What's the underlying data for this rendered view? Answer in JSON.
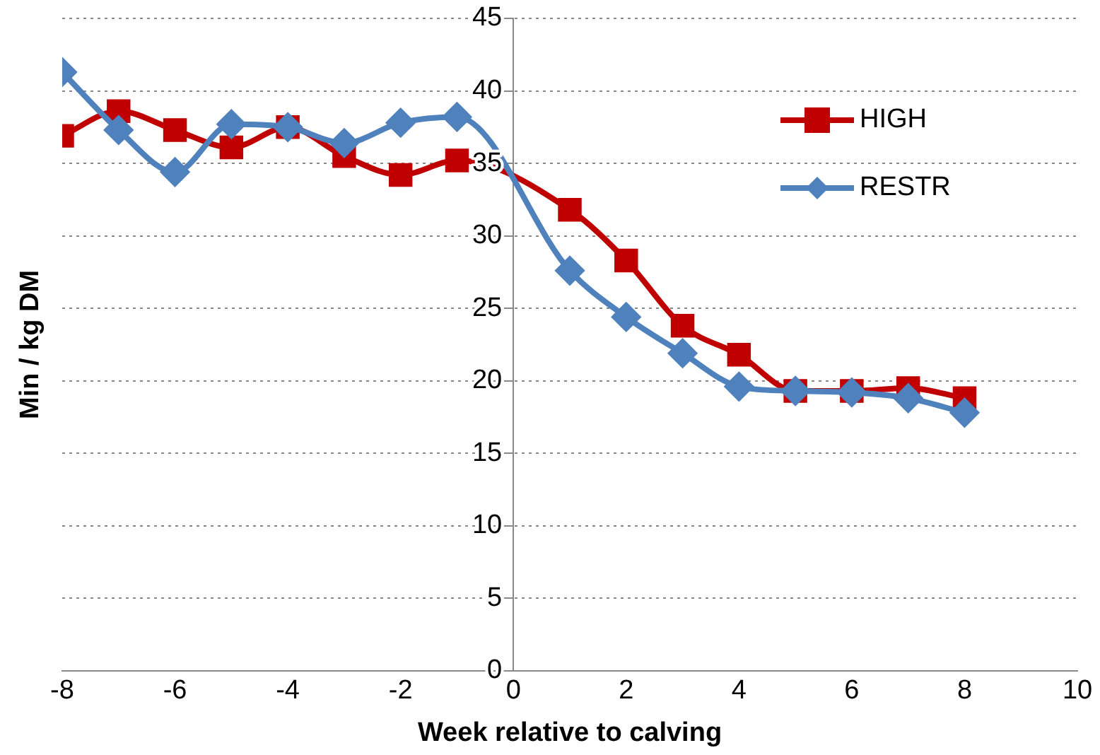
{
  "chart_data": {
    "type": "line",
    "xlabel": "Week relative to calving",
    "ylabel": "Min / kg DM",
    "xlim": [
      -8,
      10
    ],
    "xticks": [
      -8,
      -6,
      -4,
      -2,
      0,
      2,
      4,
      6,
      8,
      10
    ],
    "ylim": [
      0,
      45
    ],
    "yticks": [
      0,
      5,
      10,
      15,
      20,
      25,
      30,
      35,
      40,
      45
    ],
    "grid": "y",
    "legend": "right",
    "series": [
      {
        "name": "HIGH",
        "color": "#c00000",
        "marker": "square",
        "x": [
          -8,
          -7,
          -6,
          -5,
          -4,
          -3,
          -2,
          -1,
          1,
          2,
          3,
          4,
          5,
          6,
          7,
          8
        ],
        "values": [
          36.9,
          38.6,
          37.3,
          36.1,
          37.5,
          35.5,
          34.2,
          35.2,
          31.8,
          28.3,
          23.8,
          21.8,
          19.3,
          19.3,
          19.5,
          18.8
        ]
      },
      {
        "name": "RESTR",
        "color": "#4f81bd",
        "marker": "diamond",
        "x": [
          -8,
          -7,
          -6,
          -5,
          -4,
          -3,
          -2,
          -1,
          1,
          2,
          3,
          4,
          5,
          6,
          7,
          8
        ],
        "values": [
          41.3,
          37.3,
          34.4,
          37.7,
          37.5,
          36.4,
          37.8,
          38.2,
          27.6,
          24.4,
          21.9,
          19.6,
          19.3,
          19.2,
          18.8,
          17.8
        ]
      }
    ]
  }
}
